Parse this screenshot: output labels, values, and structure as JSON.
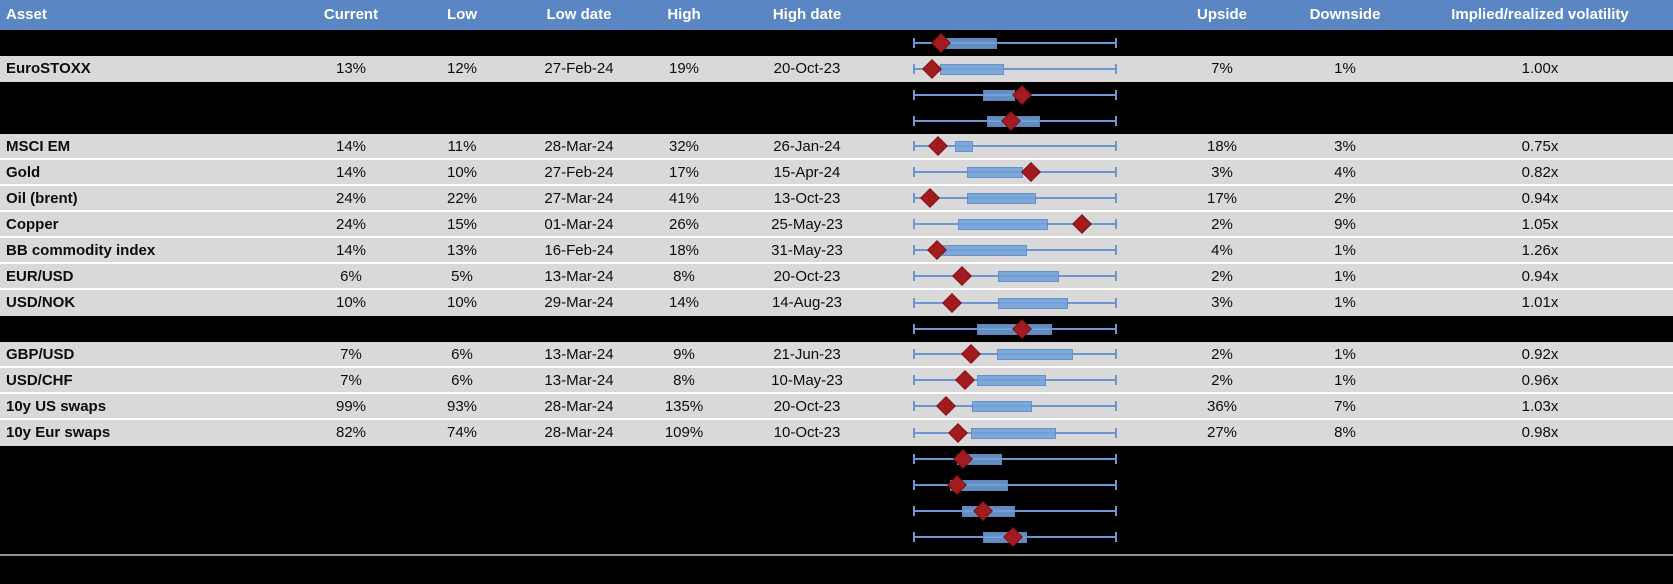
{
  "colors": {
    "header_bg": "#5a87c3",
    "header_text": "#ffffff",
    "row_bg": "#d9d9d9",
    "hidden_row_bg": "#000000",
    "whisker_blue": "#6e97cf",
    "box_fill": "#72a1d9",
    "marker_red": "#a21c1f",
    "separator_gray": "#919191"
  },
  "table": {
    "columns": [
      {
        "key": "asset",
        "label": "Asset"
      },
      {
        "key": "current",
        "label": "Current"
      },
      {
        "key": "low",
        "label": "Low"
      },
      {
        "key": "lowdate",
        "label": "Low date"
      },
      {
        "key": "high",
        "label": "High"
      },
      {
        "key": "highdate",
        "label": "High date"
      },
      {
        "key": "upside",
        "label": "Upside"
      },
      {
        "key": "downside",
        "label": "Downside"
      },
      {
        "key": "implied",
        "label": "Implied/realized volatility"
      }
    ],
    "rows": [
      {
        "kind": "hidden",
        "asset": "",
        "current": "",
        "low": "",
        "lowdate": "",
        "high": "",
        "highdate": "",
        "upside": "",
        "downside": "",
        "implied": ""
      },
      {
        "kind": "data",
        "asset": "EuroSTOXX",
        "current": "13%",
        "low": "12%",
        "lowdate": "27-Feb-24",
        "high": "19%",
        "highdate": "20-Oct-23",
        "upside": "7%",
        "downside": "1%",
        "implied": "1.00x"
      },
      {
        "kind": "hidden",
        "asset": "",
        "current": "",
        "low": "",
        "lowdate": "",
        "high": "",
        "highdate": "",
        "upside": "",
        "downside": "",
        "implied": ""
      },
      {
        "kind": "hidden",
        "asset": "",
        "current": "",
        "low": "",
        "lowdate": "",
        "high": "",
        "highdate": "",
        "upside": "",
        "downside": "",
        "implied": ""
      },
      {
        "kind": "data",
        "asset": "MSCI EM",
        "current": "14%",
        "low": "11%",
        "lowdate": "28-Mar-24",
        "high": "32%",
        "highdate": "26-Jan-24",
        "upside": "18%",
        "downside": "3%",
        "implied": "0.75x"
      },
      {
        "kind": "data",
        "asset": "Gold",
        "current": "14%",
        "low": "10%",
        "lowdate": "27-Feb-24",
        "high": "17%",
        "highdate": "15-Apr-24",
        "upside": "3%",
        "downside": "4%",
        "implied": "0.82x"
      },
      {
        "kind": "data",
        "asset": "Oil (brent)",
        "current": "24%",
        "low": "22%",
        "lowdate": "27-Mar-24",
        "high": "41%",
        "highdate": "13-Oct-23",
        "upside": "17%",
        "downside": "2%",
        "implied": "0.94x"
      },
      {
        "kind": "data",
        "asset": "Copper",
        "current": "24%",
        "low": "15%",
        "lowdate": "01-Mar-24",
        "high": "26%",
        "highdate": "25-May-23",
        "upside": "2%",
        "downside": "9%",
        "implied": "1.05x"
      },
      {
        "kind": "data",
        "asset": "BB commodity index",
        "current": "14%",
        "low": "13%",
        "lowdate": "16-Feb-24",
        "high": "18%",
        "highdate": "31-May-23",
        "upside": "4%",
        "downside": "1%",
        "implied": "1.26x"
      },
      {
        "kind": "data",
        "asset": "EUR/USD",
        "current": "6%",
        "low": "5%",
        "lowdate": "13-Mar-24",
        "high": "8%",
        "highdate": "20-Oct-23",
        "upside": "2%",
        "downside": "1%",
        "implied": "0.94x"
      },
      {
        "kind": "data",
        "asset": "USD/NOK",
        "current": "10%",
        "low": "10%",
        "lowdate": "29-Mar-24",
        "high": "14%",
        "highdate": "14-Aug-23",
        "upside": "3%",
        "downside": "1%",
        "implied": "1.01x"
      },
      {
        "kind": "hidden",
        "asset": "",
        "current": "",
        "low": "",
        "lowdate": "",
        "high": "",
        "highdate": "",
        "upside": "",
        "downside": "",
        "implied": ""
      },
      {
        "kind": "data",
        "asset": "GBP/USD",
        "current": "7%",
        "low": "6%",
        "lowdate": "13-Mar-24",
        "high": "9%",
        "highdate": "21-Jun-23",
        "upside": "2%",
        "downside": "1%",
        "implied": "0.92x"
      },
      {
        "kind": "data",
        "asset": "USD/CHF",
        "current": "7%",
        "low": "6%",
        "lowdate": "13-Mar-24",
        "high": "8%",
        "highdate": "10-May-23",
        "upside": "2%",
        "downside": "1%",
        "implied": "0.96x"
      },
      {
        "kind": "data",
        "asset": "10y US swaps",
        "current": "99%",
        "low": "93%",
        "lowdate": "28-Mar-24",
        "high": "135%",
        "highdate": "20-Oct-23",
        "upside": "36%",
        "downside": "7%",
        "implied": "1.03x"
      },
      {
        "kind": "data",
        "asset": "10y Eur swaps",
        "current": "82%",
        "low": "74%",
        "lowdate": "28-Mar-24",
        "high": "109%",
        "highdate": "10-Oct-23",
        "upside": "27%",
        "downside": "8%",
        "implied": "0.98x"
      },
      {
        "kind": "hidden",
        "asset": "",
        "current": "",
        "low": "",
        "lowdate": "",
        "high": "",
        "highdate": "",
        "upside": "",
        "downside": "",
        "implied": ""
      },
      {
        "kind": "hidden",
        "asset": "",
        "current": "",
        "low": "",
        "lowdate": "",
        "high": "",
        "highdate": "",
        "upside": "",
        "downside": "",
        "implied": ""
      },
      {
        "kind": "hidden",
        "asset": "",
        "current": "",
        "low": "",
        "lowdate": "",
        "high": "",
        "highdate": "",
        "upside": "",
        "downside": "",
        "implied": ""
      },
      {
        "kind": "hidden",
        "asset": "",
        "current": "",
        "low": "",
        "lowdate": "",
        "high": "",
        "highdate": "",
        "upside": "",
        "downside": "",
        "implied": ""
      }
    ]
  },
  "chart_data": {
    "type": "boxplot",
    "orientation": "horizontal",
    "title": "",
    "xlabel": "",
    "ylabel": "",
    "axis_note": "each row's whiskers span the full 0-100% of that asset's low-high implied volatility range; box and diamond positions are percentages of that range",
    "whisker_pct": [
      0,
      100
    ],
    "legend": "red diamond = current level, blue box = middle range",
    "rows": [
      {
        "label": "",
        "hidden": true,
        "box_pct": [
          15.7,
          41.2
        ],
        "marker_pct": 13.7
      },
      {
        "label": "EuroSTOXX",
        "hidden": false,
        "box_pct": [
          13.2,
          44.6
        ],
        "marker_pct": 9.3
      },
      {
        "label": "",
        "hidden": true,
        "box_pct": [
          34.3,
          50.0
        ],
        "marker_pct": 53.4
      },
      {
        "label": "",
        "hidden": true,
        "box_pct": [
          36.3,
          62.3
        ],
        "marker_pct": 48.0
      },
      {
        "label": "MSCI EM",
        "hidden": false,
        "box_pct": [
          20.6,
          29.4
        ],
        "marker_pct": 12.3
      },
      {
        "label": "Gold",
        "hidden": false,
        "box_pct": [
          26.5,
          53.9
        ],
        "marker_pct": 57.8
      },
      {
        "label": "Oil (brent)",
        "hidden": false,
        "box_pct": [
          26.5,
          60.3
        ],
        "marker_pct": 8.3
      },
      {
        "label": "Copper",
        "hidden": false,
        "box_pct": [
          22.1,
          66.2
        ],
        "marker_pct": 82.8
      },
      {
        "label": "BB commodity index",
        "hidden": false,
        "box_pct": [
          14.2,
          55.9
        ],
        "marker_pct": 11.8
      },
      {
        "label": "EUR/USD",
        "hidden": false,
        "box_pct": [
          41.7,
          71.6
        ],
        "marker_pct": 24.0
      },
      {
        "label": "USD/NOK",
        "hidden": false,
        "box_pct": [
          41.7,
          76.0
        ],
        "marker_pct": 19.1
      },
      {
        "label": "",
        "hidden": true,
        "box_pct": [
          31.4,
          68.1
        ],
        "marker_pct": 53.4
      },
      {
        "label": "GBP/USD",
        "hidden": false,
        "box_pct": [
          41.2,
          78.4
        ],
        "marker_pct": 28.4
      },
      {
        "label": "USD/CHF",
        "hidden": false,
        "box_pct": [
          31.4,
          65.2
        ],
        "marker_pct": 25.5
      },
      {
        "label": "10y US swaps",
        "hidden": false,
        "box_pct": [
          28.9,
          58.3
        ],
        "marker_pct": 16.2
      },
      {
        "label": "10y Eur swaps",
        "hidden": false,
        "box_pct": [
          28.4,
          70.1
        ],
        "marker_pct": 22.1
      },
      {
        "label": "",
        "hidden": true,
        "box_pct": [
          21.6,
          43.6
        ],
        "marker_pct": 24.5
      },
      {
        "label": "",
        "hidden": true,
        "box_pct": [
          18.1,
          46.6
        ],
        "marker_pct": 21.6
      },
      {
        "label": "",
        "hidden": true,
        "box_pct": [
          24.0,
          50.0
        ],
        "marker_pct": 34.3
      },
      {
        "label": "",
        "hidden": true,
        "box_pct": [
          34.3,
          55.9
        ],
        "marker_pct": 49.0
      }
    ]
  }
}
